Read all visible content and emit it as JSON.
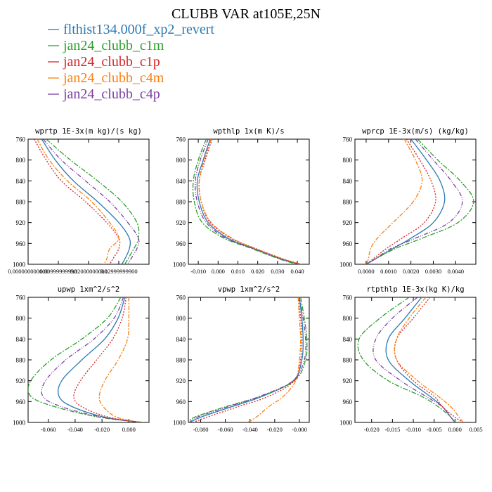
{
  "title": "CLUBB VAR at105E,25N",
  "legend": [
    {
      "name": "flthist134.000f_xp2_revert",
      "color": "#2a7ab5",
      "dash": ""
    },
    {
      "name": "jan24_clubb_c1m",
      "color": "#2ca02c",
      "dash": "7,2,2,2"
    },
    {
      "name": "jan24_clubb_c1p",
      "color": "#d62728",
      "dash": "2,2"
    },
    {
      "name": "jan24_clubb_c4m",
      "color": "#ff7f0e",
      "dash": "6,2,2,2"
    },
    {
      "name": "jan24_clubb_c4p",
      "color": "#7b3fa0",
      "dash": "6,2,1,2,1,2"
    }
  ],
  "chart_data": [
    {
      "type": "line",
      "title": "wprtp  1E-3x(m kg)/(s kg)",
      "xlim": [
        0,
        0.04
      ],
      "xticks": [
        0,
        0.01,
        0.02,
        0.03
      ],
      "xticklabels": [
        "0.000000000000",
        "0.00999999998",
        "0.02000000000",
        "0.02999999900"
      ],
      "ylim": [
        760,
        1000
      ],
      "yticks": [
        760,
        800,
        840,
        880,
        920,
        960,
        1000
      ],
      "y": [
        760,
        800,
        840,
        880,
        920,
        950,
        970,
        990,
        1000
      ],
      "series": [
        {
          "name": "flthist134.000f_xp2_revert",
          "x": [
            0.0045,
            0.009,
            0.015,
            0.023,
            0.03,
            0.0335,
            0.0335,
            0.032,
            0.031
          ]
        },
        {
          "name": "jan24_clubb_c1m",
          "x": [
            0.006,
            0.014,
            0.023,
            0.031,
            0.036,
            0.0365,
            0.035,
            0.033,
            0.032
          ]
        },
        {
          "name": "jan24_clubb_c1p",
          "x": [
            0.002,
            0.006,
            0.011,
            0.019,
            0.026,
            0.03,
            0.03,
            0.028,
            0.027
          ]
        },
        {
          "name": "jan24_clubb_c4m",
          "x": [
            0.003,
            0.007,
            0.013,
            0.021,
            0.027,
            0.03,
            0.027,
            0.026,
            0.025
          ]
        },
        {
          "name": "jan24_clubb_c4p",
          "x": [
            0.005,
            0.011,
            0.019,
            0.027,
            0.033,
            0.0365,
            0.036,
            0.034,
            0.033
          ]
        }
      ]
    },
    {
      "type": "line",
      "title": "wpthlp  1x(m K)/s",
      "xlim": [
        -0.015,
        0.046
      ],
      "xticks": [
        -0.01,
        0,
        0.01,
        0.02,
        0.03,
        0.04
      ],
      "xticklabels": [
        "-0.010",
        "0.000",
        "0.010",
        "0.020",
        "0.030",
        "0.040"
      ],
      "ylim": [
        760,
        1000
      ],
      "yticks": [
        760,
        800,
        840,
        880,
        920,
        960,
        1000
      ],
      "y": [
        760,
        800,
        840,
        880,
        920,
        950,
        970,
        990,
        1000
      ],
      "series": [
        {
          "name": "flthist134.000f_xp2_revert",
          "x": [
            -0.004,
            -0.0075,
            -0.0105,
            -0.0095,
            -0.005,
            0.005,
            0.018,
            0.032,
            0.041
          ]
        },
        {
          "name": "jan24_clubb_c1m",
          "x": [
            -0.006,
            -0.01,
            -0.0125,
            -0.012,
            -0.008,
            0.003,
            0.017,
            0.031,
            0.04
          ]
        },
        {
          "name": "jan24_clubb_c1p",
          "x": [
            -0.003,
            -0.0065,
            -0.0095,
            -0.0085,
            -0.004,
            0.0065,
            0.019,
            0.033,
            0.042
          ]
        },
        {
          "name": "jan24_clubb_c4m",
          "x": [
            -0.0035,
            -0.007,
            -0.0095,
            -0.0085,
            -0.0035,
            0.007,
            0.019,
            0.033,
            0.042
          ]
        },
        {
          "name": "jan24_clubb_c4p",
          "x": [
            -0.005,
            -0.009,
            -0.0115,
            -0.0105,
            -0.006,
            0.004,
            0.018,
            0.032,
            0.041
          ]
        }
      ]
    },
    {
      "type": "line",
      "title": "wprcp  1E-3x(m/s) (kg/kg)",
      "xlim": [
        -0.0005,
        0.0049
      ],
      "xticks": [
        0,
        0.001,
        0.002,
        0.003,
        0.004
      ],
      "xticklabels": [
        "0.0000",
        "0.0010",
        "0.0020",
        "0.0030",
        "0.0040"
      ],
      "ylim": [
        760,
        1000
      ],
      "yticks": [
        760,
        800,
        840,
        880,
        920,
        960,
        1000
      ],
      "y": [
        760,
        800,
        840,
        880,
        920,
        950,
        970,
        990,
        1000
      ],
      "series": [
        {
          "name": "flthist134.000f_xp2_revert",
          "x": [
            0.002,
            0.0027,
            0.0033,
            0.0035,
            0.003,
            0.002,
            0.0012,
            0.0004,
            0.0
          ]
        },
        {
          "name": "jan24_clubb_c1m",
          "x": [
            0.0023,
            0.0032,
            0.0042,
            0.0048,
            0.0041,
            0.0025,
            0.0013,
            0.0004,
            0.0
          ]
        },
        {
          "name": "jan24_clubb_c1p",
          "x": [
            0.0018,
            0.0024,
            0.0029,
            0.0031,
            0.0026,
            0.0016,
            0.0009,
            0.0003,
            0.0
          ]
        },
        {
          "name": "jan24_clubb_c4m",
          "x": [
            0.0017,
            0.0022,
            0.0025,
            0.0021,
            0.0012,
            0.0005,
            0.0002,
            0.0001,
            0.0
          ]
        },
        {
          "name": "jan24_clubb_c4p",
          "x": [
            0.0022,
            0.003,
            0.0038,
            0.0043,
            0.0037,
            0.0022,
            0.0011,
            0.0004,
            0.0
          ]
        }
      ]
    },
    {
      "type": "line",
      "title": "upwp  1xm^2/s^2",
      "xlim": [
        -0.075,
        0.015
      ],
      "xticks": [
        -0.06,
        -0.04,
        -0.02,
        0
      ],
      "xticklabels": [
        "-0.060",
        "-0.040",
        "-0.020",
        "0.000"
      ],
      "ylim": [
        760,
        1000
      ],
      "yticks": [
        760,
        800,
        840,
        880,
        920,
        960,
        1000
      ],
      "y": [
        760,
        800,
        840,
        880,
        920,
        950,
        970,
        990,
        1000
      ],
      "series": [
        {
          "name": "flthist134.000f_xp2_revert",
          "x": [
            -0.003,
            -0.008,
            -0.018,
            -0.035,
            -0.05,
            -0.052,
            -0.042,
            -0.018,
            0.01
          ]
        },
        {
          "name": "jan24_clubb_c1m",
          "x": [
            -0.006,
            -0.016,
            -0.035,
            -0.058,
            -0.073,
            -0.073,
            -0.055,
            -0.022,
            0.011
          ]
        },
        {
          "name": "jan24_clubb_c1p",
          "x": [
            -0.002,
            -0.005,
            -0.012,
            -0.024,
            -0.036,
            -0.041,
            -0.035,
            -0.015,
            0.009
          ]
        },
        {
          "name": "jan24_clubb_c4m",
          "x": [
            0.0,
            0.0,
            -0.001,
            -0.008,
            -0.018,
            -0.022,
            -0.019,
            -0.009,
            0.008
          ]
        },
        {
          "name": "jan24_clubb_c4p",
          "x": [
            -0.004,
            -0.011,
            -0.026,
            -0.047,
            -0.062,
            -0.064,
            -0.05,
            -0.02,
            0.01
          ]
        }
      ]
    },
    {
      "type": "line",
      "title": "vpwp  1xm^2/s^2",
      "xlim": [
        -0.09,
        0.008
      ],
      "xticks": [
        -0.08,
        -0.06,
        -0.04,
        -0.02,
        0
      ],
      "xticklabels": [
        "-0.080",
        "-0.060",
        "-0.040",
        "-0.020",
        "-0.000"
      ],
      "ylim": [
        760,
        1000
      ],
      "yticks": [
        760,
        800,
        840,
        880,
        920,
        960,
        1000
      ],
      "y": [
        760,
        800,
        840,
        880,
        920,
        950,
        970,
        990,
        1000
      ],
      "series": [
        {
          "name": "flthist134.000f_xp2_revert",
          "x": [
            0.0,
            0.002,
            0.003,
            0.002,
            -0.005,
            -0.03,
            -0.055,
            -0.08,
            -0.089
          ]
        },
        {
          "name": "jan24_clubb_c1m",
          "x": [
            0.001,
            0.004,
            0.006,
            0.005,
            -0.004,
            -0.032,
            -0.06,
            -0.085,
            -0.09
          ]
        },
        {
          "name": "jan24_clubb_c1p",
          "x": [
            -0.001,
            0.001,
            0.002,
            0.001,
            -0.004,
            -0.025,
            -0.05,
            -0.075,
            -0.086
          ]
        },
        {
          "name": "jan24_clubb_c4m",
          "x": [
            -0.001,
            0.0,
            0.001,
            0.0,
            -0.003,
            -0.013,
            -0.025,
            -0.035,
            -0.042
          ]
        },
        {
          "name": "jan24_clubb_c4p",
          "x": [
            0.0,
            0.003,
            0.005,
            0.004,
            -0.005,
            -0.032,
            -0.058,
            -0.083,
            -0.089
          ]
        }
      ]
    },
    {
      "type": "line",
      "title": "rtpthlp  1E-3x(kg K)/kg",
      "xlim": [
        -0.024,
        0.005
      ],
      "xticks": [
        -0.02,
        -0.015,
        -0.01,
        -0.005,
        0,
        0.005
      ],
      "xticklabels": [
        "-0.020",
        "-0.015",
        "-0.010",
        "-0.005",
        "0.000",
        "0.005"
      ],
      "ylim": [
        760,
        1000
      ],
      "yticks": [
        760,
        800,
        840,
        880,
        920,
        960,
        1000
      ],
      "y": [
        760,
        800,
        840,
        880,
        920,
        950,
        970,
        990,
        1000
      ],
      "series": [
        {
          "name": "flthist134.000f_xp2_revert",
          "x": [
            -0.008,
            -0.012,
            -0.016,
            -0.016,
            -0.011,
            -0.006,
            -0.003,
            -0.001,
            0.0
          ]
        },
        {
          "name": "jan24_clubb_c1m",
          "x": [
            -0.011,
            -0.018,
            -0.023,
            -0.022,
            -0.016,
            -0.008,
            -0.004,
            -0.001,
            0.0
          ]
        },
        {
          "name": "jan24_clubb_c1p",
          "x": [
            -0.006,
            -0.01,
            -0.014,
            -0.014,
            -0.01,
            -0.005,
            -0.003,
            0.0,
            0.002
          ]
        },
        {
          "name": "jan24_clubb_c4m",
          "x": [
            -0.007,
            -0.011,
            -0.014,
            -0.014,
            -0.009,
            -0.004,
            -0.001,
            0.001,
            0.002
          ]
        },
        {
          "name": "jan24_clubb_c4p",
          "x": [
            -0.009,
            -0.015,
            -0.019,
            -0.019,
            -0.013,
            -0.007,
            -0.003,
            -0.001,
            0.0
          ]
        }
      ]
    }
  ]
}
